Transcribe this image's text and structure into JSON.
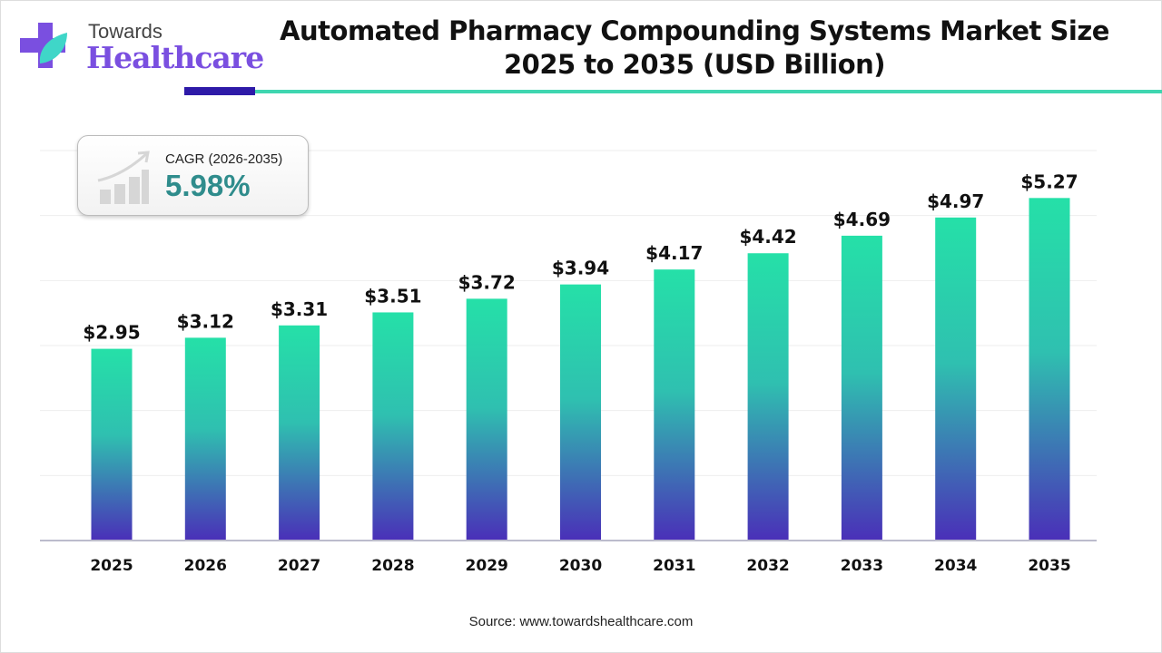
{
  "logo": {
    "line1": "Towards",
    "line2": "Healthcare"
  },
  "title": {
    "line1": "Automated Pharmacy Compounding Systems Market Size",
    "line2": "2025 to 2035 (USD Billion)"
  },
  "cagr": {
    "label": "CAGR (2026-2035)",
    "value": "5.98%"
  },
  "source": "Source: www.towardshealthcare.com",
  "colors": {
    "bar_top": "#25e0a8",
    "bar_bottom": "#4a2fb8",
    "accent_dark": "#2e1aa8",
    "accent_teal": "#3fd6b0"
  },
  "chart_data": {
    "type": "bar",
    "title": "Automated Pharmacy Compounding Systems Market Size 2025 to 2035 (USD Billion)",
    "categories": [
      "2025",
      "2026",
      "2027",
      "2028",
      "2029",
      "2030",
      "2031",
      "2032",
      "2033",
      "2034",
      "2035"
    ],
    "values": [
      2.95,
      3.12,
      3.31,
      3.51,
      3.72,
      3.94,
      4.17,
      4.42,
      4.69,
      4.97,
      5.27
    ],
    "labels": [
      "$2.95",
      "$3.12",
      "$3.31",
      "$3.51",
      "$3.72",
      "$3.94",
      "$4.17",
      "$4.42",
      "$4.69",
      "$4.97",
      "$5.27"
    ],
    "xlabel": "",
    "ylabel": "USD Billion",
    "ylim": [
      0,
      6
    ],
    "grid": true
  }
}
